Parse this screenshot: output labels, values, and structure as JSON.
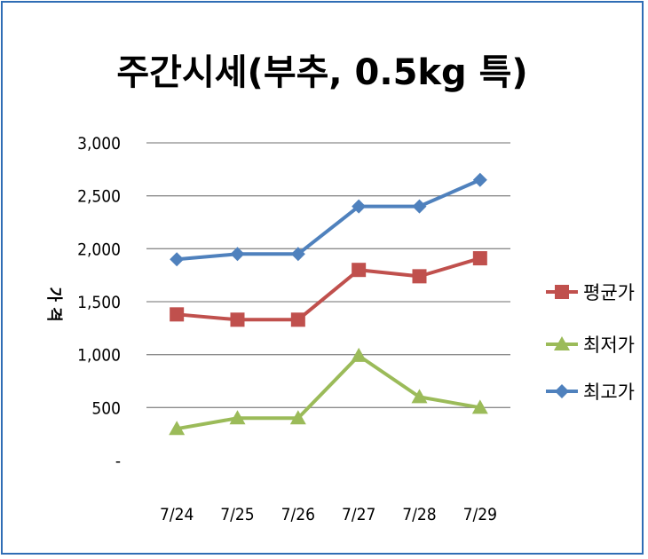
{
  "chart_data": {
    "type": "line",
    "title": "주간시세(부추, 0.5kg 특)",
    "ylabel": "가 격",
    "xlabel": "",
    "categories": [
      "7/24",
      "7/25",
      "7/26",
      "7/27",
      "7/28",
      "7/29"
    ],
    "ylim": [
      0,
      3000
    ],
    "yticks": [
      0,
      500,
      1000,
      1500,
      2000,
      2500,
      3000
    ],
    "ytick_labels": [
      "-",
      "500",
      "1,000",
      "1,500",
      "2,000",
      "2,500",
      "3,000"
    ],
    "grid": true,
    "legend_position": "right",
    "series": [
      {
        "name": "평균가",
        "color": "#c0504d",
        "marker": "square",
        "values": [
          1380,
          1330,
          1330,
          1800,
          1740,
          1910
        ]
      },
      {
        "name": "최저가",
        "color": "#9bbb59",
        "marker": "triangle",
        "values": [
          300,
          400,
          400,
          990,
          600,
          500
        ]
      },
      {
        "name": "최고가",
        "color": "#4f81bd",
        "marker": "diamond",
        "values": [
          1900,
          1950,
          1950,
          2400,
          2400,
          2650
        ]
      }
    ]
  }
}
